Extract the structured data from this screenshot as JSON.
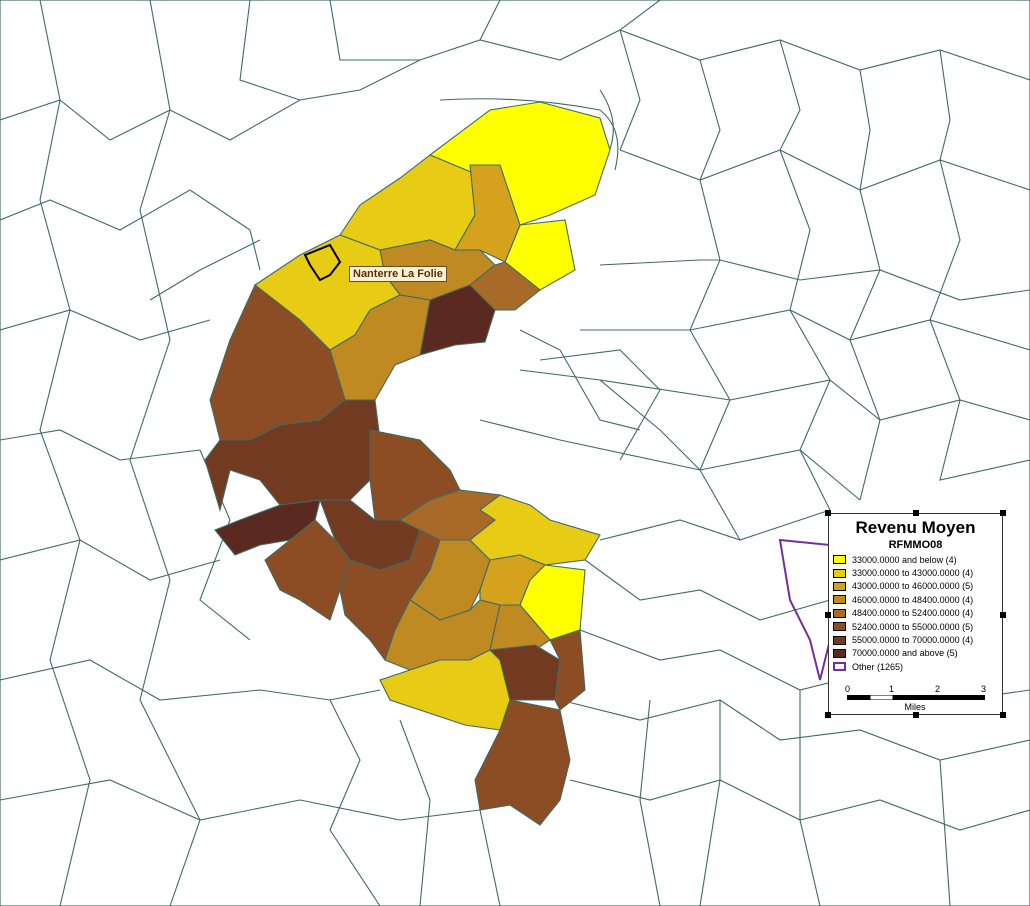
{
  "map_label": "Nanterre La Folie",
  "legend": {
    "title": "Revenu Moyen",
    "subtitle": "RFMMO08",
    "items": [
      {
        "label": "33000.0000 and below (4)",
        "color": "#ffff00"
      },
      {
        "label": "33000.0000 to 43000.0000 (4)",
        "color": "#e8cb14"
      },
      {
        "label": "43000.0000 to 46000.0000 (5)",
        "color": "#d4a21c"
      },
      {
        "label": "46000.0000 to 48400.0000 (4)",
        "color": "#c08a22"
      },
      {
        "label": "48400.0000 to 52400.0000 (4)",
        "color": "#a86a28"
      },
      {
        "label": "52400.0000 to 55000.0000 (5)",
        "color": "#8c4d24"
      },
      {
        "label": "55000.0000 to 70000.0000 (4)",
        "color": "#733a22"
      },
      {
        "label": "70000.0000 and above (5)",
        "color": "#5a2a20"
      },
      {
        "label": "Other (1265)",
        "color": "#ffffff",
        "outline": "#7030a0"
      }
    ],
    "scale": {
      "ticks": [
        "0",
        "1",
        "2",
        "3"
      ],
      "units": "Miles"
    }
  }
}
